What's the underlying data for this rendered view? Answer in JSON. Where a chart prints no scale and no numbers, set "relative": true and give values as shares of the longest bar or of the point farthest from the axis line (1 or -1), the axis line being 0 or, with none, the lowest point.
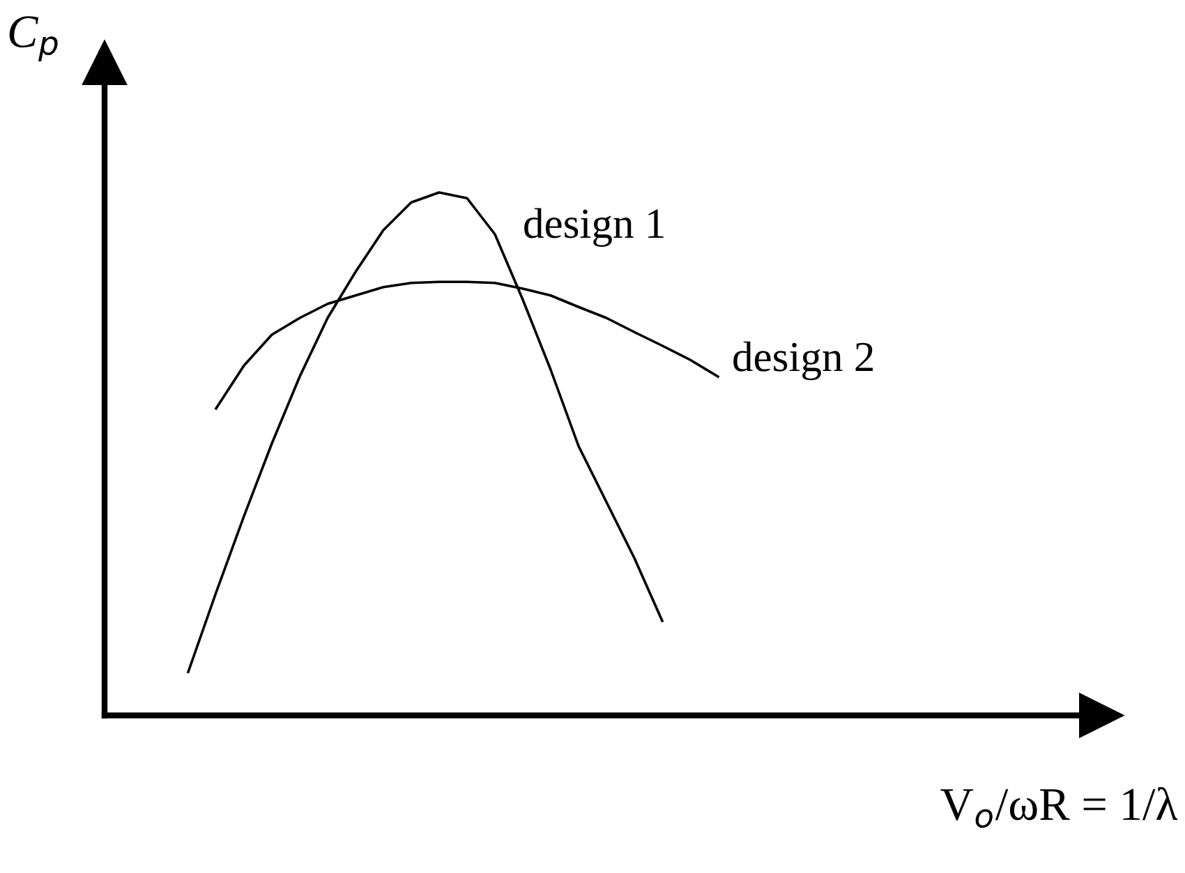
{
  "chart_data": {
    "type": "line",
    "relative": true,
    "tick_labels": false,
    "legend": false,
    "marker": "none",
    "line_style": "solid",
    "ylabel": "C$_{p}$",
    "xlabel": "V$_{o}$/ωR = 1/λ",
    "categories": [
      null,
      null,
      null,
      null,
      null,
      null,
      null,
      null,
      null,
      null,
      null,
      null,
      null,
      null,
      null,
      null,
      null,
      null,
      null,
      null,
      null
    ],
    "series": [
      {
        "name": "design 1",
        "color": "#000000",
        "values": [
          0.083,
          0.235,
          0.381,
          0.52,
          0.648,
          0.76,
          0.848,
          0.928,
          0.981,
          1,
          0.989,
          0.92,
          0.795,
          0.661,
          0.515,
          0.408,
          0.301,
          0.181,
          null,
          null,
          null
        ]
      },
      {
        "name": "design 2",
        "color": "#000000",
        "values": [
          null,
          0.587,
          0.669,
          0.728,
          0.76,
          0.787,
          0.803,
          0.819,
          0.827,
          0.829,
          0.829,
          0.827,
          0.816,
          0.803,
          0.781,
          0.76,
          0.733,
          0.707,
          0.68,
          0.648,
          null
        ]
      }
    ]
  }
}
